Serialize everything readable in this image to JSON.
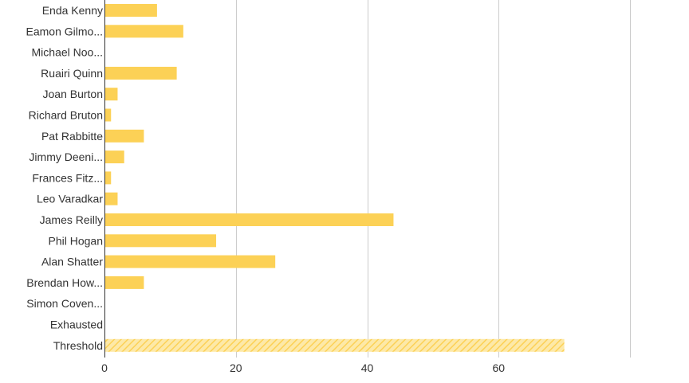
{
  "chart_data": {
    "type": "bar",
    "orientation": "horizontal",
    "categories": [
      "Enda Kenny",
      "Eamon Gilmo...",
      "Michael Noo...",
      "Ruairi Quinn",
      "Joan Burton",
      "Richard Bruton",
      "Pat Rabbitte",
      "Jimmy Deeni...",
      "Frances Fitz...",
      "Leo Varadkar",
      "James Reilly",
      "Phil Hogan",
      "Alan Shatter",
      "Brendan How...",
      "Simon Coven...",
      "Exhausted",
      "Threshold"
    ],
    "values": [
      8,
      12,
      0,
      11,
      2,
      1,
      6,
      3,
      1,
      2,
      44,
      17,
      26,
      6,
      0,
      0,
      70
    ],
    "highlight": {
      "category": "Threshold",
      "style": "hatched"
    },
    "x_ticks": [
      0,
      20,
      40,
      60
    ],
    "xlim": [
      0,
      80
    ],
    "grid": true,
    "title": "",
    "xlabel": "",
    "ylabel": ""
  },
  "colors": {
    "bar": "#fcd156",
    "hatch_light": "#fde9a8",
    "grid": "#cccccc",
    "axis": "#333333",
    "text": "#333333"
  }
}
